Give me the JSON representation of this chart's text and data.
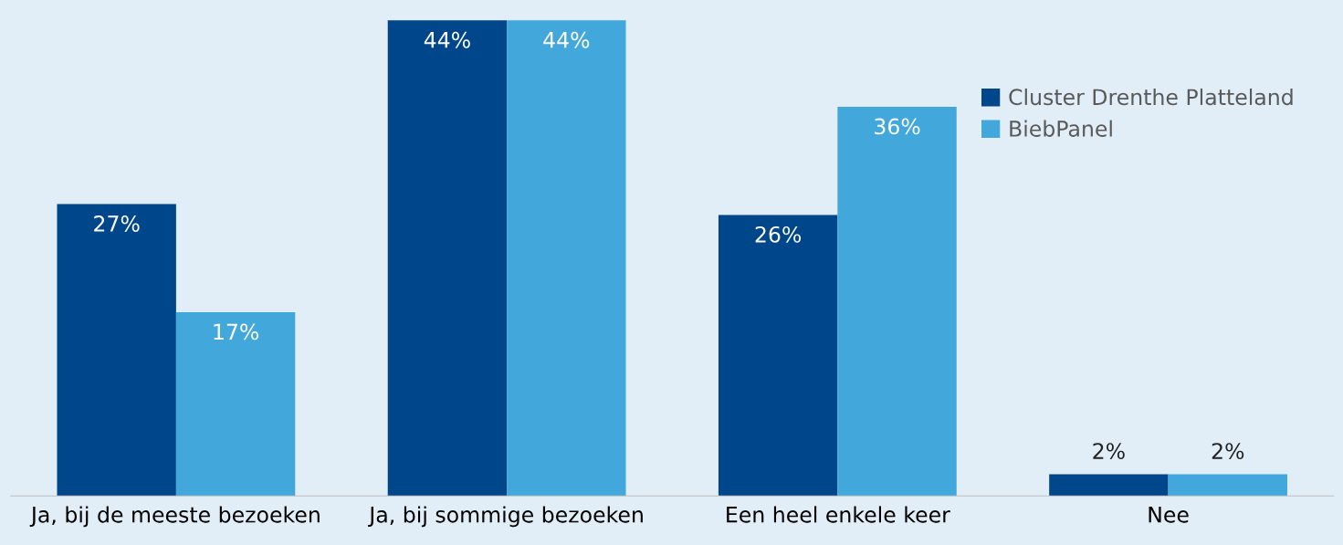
{
  "chart_data": {
    "type": "bar",
    "categories": [
      "Ja, bij de meeste bezoeken",
      "Ja, bij sommige bezoeken",
      "Een heel enkele keer",
      "Nee"
    ],
    "series": [
      {
        "name": "Cluster Drenthe Platteland",
        "color": "#00468b",
        "values": [
          27,
          44,
          26,
          2
        ],
        "value_labels": [
          "27%",
          "44%",
          "26%",
          "2%"
        ]
      },
      {
        "name": "BiebPanel",
        "color": "#42a8db",
        "values": [
          17,
          44,
          36,
          2
        ],
        "value_labels": [
          "17%",
          "44%",
          "36%",
          "2%"
        ]
      }
    ],
    "legend": "top right",
    "grid": false
  }
}
